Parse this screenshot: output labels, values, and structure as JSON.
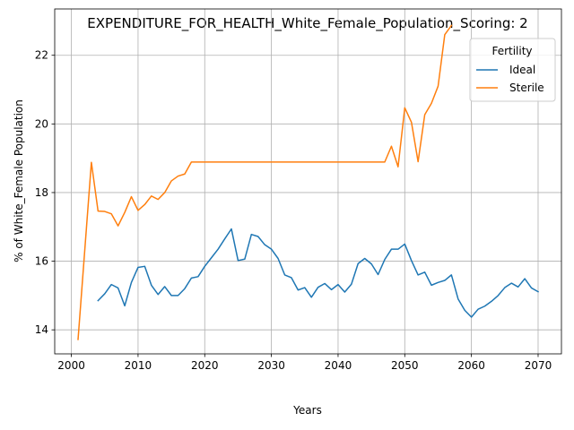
{
  "chart_data": {
    "type": "line",
    "title": "EXPENDITURE_FOR_HEALTH_White_Female_Population_Scoring: 2",
    "xlabel": "Years",
    "ylabel": "% of White_Female Population",
    "xlim": [
      1997.5,
      2073.5
    ],
    "ylim": [
      13.3,
      23.35
    ],
    "xticks": [
      2000,
      2010,
      2020,
      2030,
      2040,
      2050,
      2060,
      2070
    ],
    "yticks": [
      14,
      16,
      18,
      20,
      22
    ],
    "grid": true,
    "legend": {
      "title": "Fertility",
      "position": "top-right"
    },
    "series": [
      {
        "name": "Ideal",
        "color": "#1f77b4",
        "x": [
          2004,
          2005,
          2006,
          2007,
          2008,
          2009,
          2010,
          2011,
          2012,
          2013,
          2014,
          2015,
          2016,
          2017,
          2018,
          2019,
          2020,
          2021,
          2022,
          2023,
          2024,
          2025,
          2026,
          2027,
          2028,
          2029,
          2030,
          2031,
          2032,
          2033,
          2034,
          2035,
          2036,
          2037,
          2038,
          2039,
          2040,
          2041,
          2042,
          2043,
          2044,
          2045,
          2046,
          2047,
          2048,
          2049,
          2050,
          2051,
          2052,
          2053,
          2054,
          2055,
          2056,
          2057,
          2058,
          2059,
          2060,
          2061,
          2062,
          2063,
          2064,
          2065,
          2066,
          2067,
          2068,
          2069,
          2070
        ],
        "values": [
          14.85,
          15.05,
          15.32,
          15.22,
          14.7,
          15.38,
          15.82,
          15.85,
          15.3,
          15.03,
          15.26,
          15.0,
          15.0,
          15.2,
          15.51,
          15.55,
          15.85,
          16.1,
          16.35,
          16.65,
          16.94,
          16.02,
          16.06,
          16.78,
          16.72,
          16.48,
          16.35,
          16.08,
          15.6,
          15.52,
          15.16,
          15.23,
          14.95,
          15.24,
          15.35,
          15.17,
          15.32,
          15.1,
          15.33,
          15.93,
          16.08,
          15.92,
          15.61,
          16.05,
          16.35,
          16.35,
          16.5,
          16.02,
          15.6,
          15.68,
          15.3,
          15.38,
          15.44,
          15.6,
          14.9,
          14.57,
          14.37,
          14.6,
          14.69,
          14.83,
          15.0,
          15.23,
          15.36,
          15.25,
          15.49,
          15.22,
          15.11
        ]
      },
      {
        "name": "Sterile",
        "color": "#ff7f0e",
        "x": [
          2001,
          2002,
          2003,
          2004,
          2005,
          2006,
          2007,
          2008,
          2009,
          2010,
          2011,
          2012,
          2013,
          2014,
          2015,
          2016,
          2017,
          2018,
          2019,
          2020,
          2021,
          2022,
          2023,
          2024,
          2025,
          2026,
          2027,
          2028,
          2029,
          2030,
          2031,
          2032,
          2033,
          2034,
          2035,
          2036,
          2037,
          2038,
          2039,
          2040,
          2041,
          2042,
          2043,
          2044,
          2045,
          2046,
          2047,
          2048,
          2049,
          2050,
          2051,
          2052,
          2053,
          2054,
          2055,
          2056,
          2057
        ],
        "values": [
          13.72,
          16.3,
          18.88,
          17.46,
          17.45,
          17.38,
          17.03,
          17.42,
          17.88,
          17.48,
          17.65,
          17.9,
          17.8,
          18.0,
          18.34,
          18.48,
          18.54,
          18.89,
          18.89,
          18.89,
          18.89,
          18.89,
          18.89,
          18.89,
          18.89,
          18.89,
          18.89,
          18.89,
          18.89,
          18.89,
          18.89,
          18.89,
          18.89,
          18.89,
          18.89,
          18.89,
          18.89,
          18.89,
          18.89,
          18.89,
          18.89,
          18.89,
          18.89,
          18.89,
          18.89,
          18.89,
          18.89,
          19.35,
          18.75,
          20.47,
          20.05,
          18.9,
          20.27,
          20.6,
          21.1,
          22.6,
          22.87
        ]
      }
    ]
  }
}
